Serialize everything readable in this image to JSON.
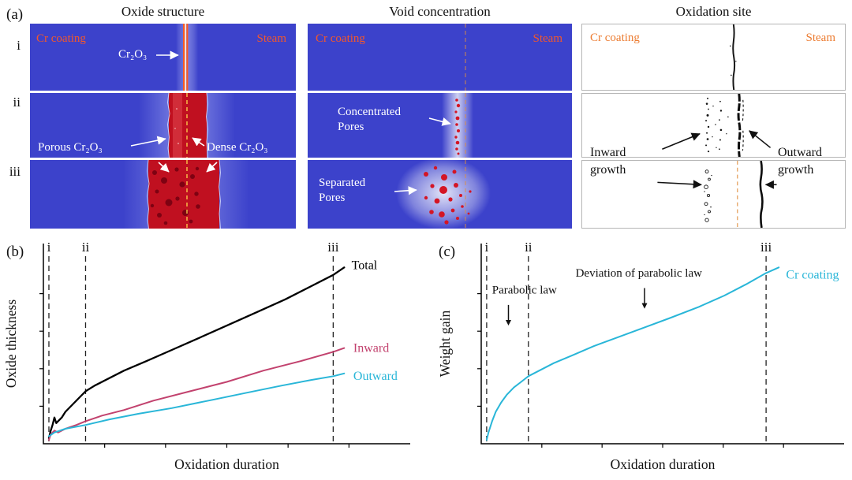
{
  "figure": {
    "panel_a_label": "(a)",
    "panel_b_label": "(b)",
    "panel_c_label": "(c)"
  },
  "panel_a": {
    "column_titles": [
      "Oxide structure",
      "Void concentration",
      "Oxidation site"
    ],
    "row_labels": [
      "i",
      "ii",
      "iii"
    ],
    "labels": {
      "cr_coating": "Cr coating",
      "steam": "Steam",
      "cr2o3": "Cr₂O₃",
      "porous_cr2o3": "Porous Cr₂O₃",
      "dense_cr2o3": "Dense Cr₂O₃",
      "concentrated_pores": "Concentrated Pores",
      "separated_pores": "Separated Pores",
      "inward_growth": "Inward growth",
      "outward_growth": "Outward growth"
    },
    "colors": {
      "matrix_blue": "#3c42cb",
      "oxide_red": "#c01020",
      "pore_red": "#7e0212",
      "interface_yellow": "#ffd34d",
      "interface_orange": "#e09040",
      "label_orange": "#f4582a",
      "site_black": "#111111"
    }
  },
  "chart_data": [
    {
      "id": "oxide-thickness",
      "type": "line",
      "panel": "(b)",
      "title": "",
      "xlabel": "Oxidation duration",
      "ylabel": "Oxide thickness",
      "x_range": [
        0,
        1
      ],
      "y_range": [
        0,
        1
      ],
      "grid": false,
      "stage_lines": [
        {
          "label": "i",
          "x": 0.015
        },
        {
          "label": "ii",
          "x": 0.115
        },
        {
          "label": "iii",
          "x": 0.79
        }
      ],
      "series": [
        {
          "name": "Total",
          "color": "#000000",
          "label_pos": [
            0.84,
            0.93
          ],
          "x": [
            0.015,
            0.02,
            0.025,
            0.03,
            0.035,
            0.04,
            0.05,
            0.06,
            0.08,
            0.1,
            0.115,
            0.14,
            0.18,
            0.22,
            0.28,
            0.35,
            0.42,
            0.5,
            0.58,
            0.66,
            0.73,
            0.79,
            0.82
          ],
          "y": [
            0.03,
            0.07,
            0.1,
            0.14,
            0.11,
            0.12,
            0.14,
            0.17,
            0.21,
            0.25,
            0.28,
            0.31,
            0.35,
            0.39,
            0.44,
            0.5,
            0.56,
            0.63,
            0.7,
            0.77,
            0.84,
            0.9,
            0.94
          ]
        },
        {
          "name": "Inward",
          "color": "#c2426e",
          "label_pos": [
            0.845,
            0.49
          ],
          "x": [
            0.015,
            0.02,
            0.03,
            0.04,
            0.06,
            0.09,
            0.115,
            0.16,
            0.22,
            0.3,
            0.4,
            0.5,
            0.6,
            0.7,
            0.79,
            0.82
          ],
          "y": [
            0.02,
            0.05,
            0.07,
            0.06,
            0.08,
            0.1,
            0.12,
            0.15,
            0.18,
            0.23,
            0.28,
            0.33,
            0.39,
            0.44,
            0.49,
            0.51
          ]
        },
        {
          "name": "Outward",
          "color": "#29b6d8",
          "label_pos": [
            0.845,
            0.34
          ],
          "x": [
            0.015,
            0.03,
            0.06,
            0.115,
            0.18,
            0.26,
            0.35,
            0.45,
            0.55,
            0.65,
            0.73,
            0.79,
            0.82
          ],
          "y": [
            0.04,
            0.06,
            0.08,
            0.1,
            0.13,
            0.16,
            0.19,
            0.23,
            0.27,
            0.31,
            0.34,
            0.36,
            0.375
          ]
        }
      ]
    },
    {
      "id": "weight-gain",
      "type": "line",
      "panel": "(c)",
      "title": "",
      "xlabel": "Oxidation duration",
      "ylabel": "Weight gain",
      "x_range": [
        0,
        1
      ],
      "y_range": [
        0,
        1
      ],
      "grid": false,
      "stage_lines": [
        {
          "label": "i",
          "x": 0.015
        },
        {
          "label": "ii",
          "x": 0.13
        },
        {
          "label": "iii",
          "x": 0.785
        }
      ],
      "annotations": [
        {
          "text": "Parabolic law",
          "tx": 0.03,
          "ty": 0.8,
          "ax": 0.075,
          "ay_from": 0.74,
          "ay_to": 0.63
        },
        {
          "text": "Deviation of parabolic law",
          "tx": 0.26,
          "ty": 0.89,
          "ax": 0.45,
          "ay_from": 0.83,
          "ay_to": 0.72
        }
      ],
      "series": [
        {
          "name": "Cr coating",
          "color": "#29b6d8",
          "label_pos": [
            0.84,
            0.88
          ],
          "x": [
            0.015,
            0.02,
            0.03,
            0.04,
            0.055,
            0.07,
            0.09,
            0.11,
            0.13,
            0.16,
            0.2,
            0.25,
            0.31,
            0.38,
            0.45,
            0.52,
            0.6,
            0.67,
            0.73,
            0.785,
            0.82
          ],
          "y": [
            0.02,
            0.06,
            0.12,
            0.17,
            0.22,
            0.26,
            0.3,
            0.33,
            0.36,
            0.39,
            0.43,
            0.47,
            0.52,
            0.57,
            0.62,
            0.67,
            0.73,
            0.79,
            0.85,
            0.91,
            0.94
          ]
        }
      ]
    }
  ]
}
